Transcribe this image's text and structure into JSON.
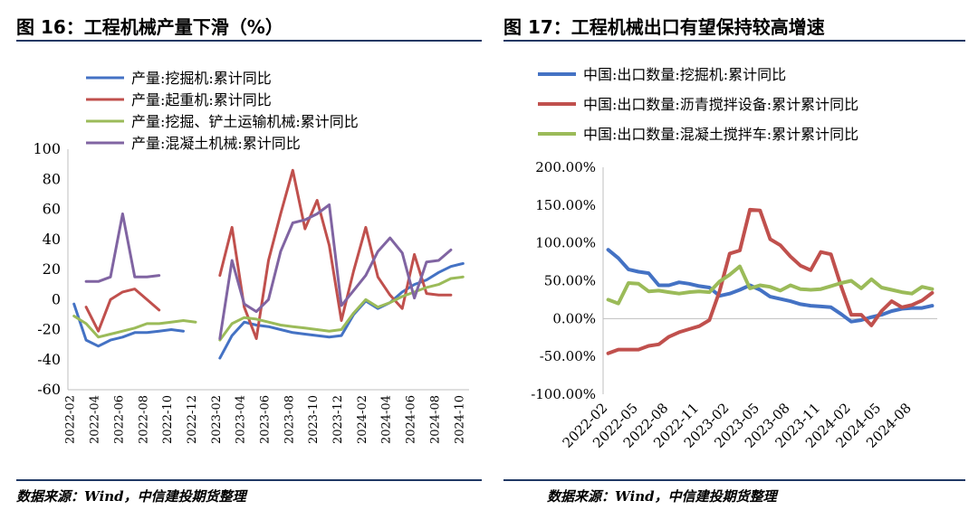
{
  "left_panel": {
    "title": "图 16：工程机械产量下滑（%）",
    "source": "数据来源：Wind，中信建投期货整理"
  },
  "right_panel": {
    "title": "图 17：工程机械出口有望保持较高增速",
    "source": "数据来源：Wind，中信建投期货整理"
  },
  "colors": {
    "blue": "#4472c4",
    "red": "#c0504d",
    "green": "#9bbb59",
    "purple": "#8064a2",
    "rule": "#1f3864"
  },
  "chart_data": [
    {
      "type": "line",
      "title": "",
      "xlabel": "",
      "ylabel": "",
      "ylim": [
        -60,
        100
      ],
      "yticks": [
        "100",
        "80",
        "60",
        "40",
        "20",
        "0",
        "-20",
        "-40",
        "-60"
      ],
      "yticks_values": [
        100,
        80,
        60,
        40,
        20,
        0,
        -20,
        -40,
        -60
      ],
      "x": [
        "2022-02",
        "2022-03",
        "2022-04",
        "2022-05",
        "2022-06",
        "2022-07",
        "2022-08",
        "2022-09",
        "2022-10",
        "2022-11",
        "2022-12",
        "2023-01",
        "2023-02",
        "2023-03",
        "2023-04",
        "2023-05",
        "2023-06",
        "2023-07",
        "2023-08",
        "2023-09",
        "2023-10",
        "2023-11",
        "2023-12",
        "2024-01",
        "2024-02",
        "2024-03",
        "2024-04",
        "2024-05",
        "2024-06",
        "2024-07",
        "2024-08",
        "2024-09",
        "2024-10"
      ],
      "xtick_labels": [
        "2022-02",
        "2022-04",
        "2022-06",
        "2022-08",
        "2022-10",
        "2022-12",
        "2023-02",
        "2023-04",
        "2023-06",
        "2023-08",
        "2023-10",
        "2023-12",
        "2024-02",
        "2024-04",
        "2024-06",
        "2024-08",
        "2024-10"
      ],
      "grid": false,
      "legend_position": "top-left",
      "series": [
        {
          "name": "产量:挖掘机:累计同比",
          "color": "#4472c4",
          "values": [
            -3,
            -27,
            -31,
            -27,
            -25,
            -22,
            -22,
            -21,
            -20,
            -21,
            null,
            null,
            -39,
            -24,
            -15,
            -17,
            -18,
            -20,
            -22,
            -23,
            -24,
            -25,
            -24,
            -10,
            -1,
            -6,
            -2,
            5,
            10,
            13,
            18,
            22,
            24
          ]
        },
        {
          "name": "产量:起重机:累计同比",
          "color": "#c0504d",
          "values": [
            null,
            -5,
            -21,
            0,
            5,
            7,
            0,
            -7,
            null,
            null,
            null,
            null,
            16,
            48,
            -5,
            -26,
            26,
            57,
            86,
            47,
            66,
            36,
            -14,
            19,
            48,
            15,
            3,
            -6,
            30,
            4,
            3,
            3,
            null
          ]
        },
        {
          "name": "产量:挖掘、铲土运输机械:累计同比",
          "color": "#9bbb59",
          "values": [
            -11,
            -16,
            -25,
            -23,
            -21,
            -19,
            -16,
            -16,
            -15,
            -14,
            -15,
            null,
            -27,
            -16,
            -12,
            -13,
            -15,
            -17,
            -18,
            -19,
            -20,
            -21,
            -20,
            -9,
            0,
            -5,
            -2,
            2,
            5,
            8,
            10,
            14,
            15
          ]
        },
        {
          "name": "产量:混凝土机械:累计同比",
          "color": "#8064a2",
          "values": [
            null,
            12,
            12,
            15,
            57,
            15,
            15,
            16,
            null,
            null,
            null,
            null,
            -26,
            26,
            -3,
            -8,
            0,
            32,
            51,
            53,
            57,
            63,
            -4,
            6,
            16,
            32,
            41,
            31,
            1,
            25,
            26,
            33,
            null
          ]
        }
      ]
    },
    {
      "type": "line",
      "title": "",
      "xlabel": "",
      "ylabel": "",
      "ylim": [
        -100,
        200
      ],
      "yticks": [
        "200.00%",
        "150.00%",
        "100.00%",
        "50.00%",
        "0.00%",
        "-50.00%",
        "-100.00%"
      ],
      "yticks_values": [
        200,
        150,
        100,
        50,
        0,
        -50,
        -100
      ],
      "x": [
        "2022-02",
        "2022-03",
        "2022-04",
        "2022-05",
        "2022-06",
        "2022-07",
        "2022-08",
        "2022-09",
        "2022-10",
        "2022-11",
        "2022-12",
        "2023-01",
        "2023-02",
        "2023-03",
        "2023-04",
        "2023-05",
        "2023-06",
        "2023-07",
        "2023-08",
        "2023-09",
        "2023-10",
        "2023-11",
        "2023-12",
        "2024-01",
        "2024-02",
        "2024-03",
        "2024-04",
        "2024-05",
        "2024-06",
        "2024-07",
        "2024-08",
        "2024-09",
        "2024-10"
      ],
      "xtick_labels": [
        "2022-02",
        "2022-05",
        "2022-08",
        "2022-11",
        "2023-02",
        "2023-05",
        "2023-08",
        "2023-11",
        "2024-02",
        "2024-05",
        "2024-08"
      ],
      "grid": false,
      "legend_position": "top-left",
      "series": [
        {
          "name": "中国:出口数量:挖掘机:累计同比",
          "color": "#4472c4",
          "values": [
            91,
            80,
            65,
            62,
            60,
            44,
            44,
            48,
            46,
            43,
            41,
            30,
            33,
            38,
            44,
            38,
            29,
            26,
            23,
            19,
            17,
            16,
            15,
            6,
            -4,
            -2,
            2,
            5,
            10,
            13,
            14,
            14,
            17
          ]
        },
        {
          "name": "中国:出口数量:沥青搅拌设备:累计累计同比",
          "color": "#c0504d",
          "values": [
            -46,
            -41,
            -41,
            -41,
            -36,
            -34,
            -24,
            -18,
            -14,
            -10,
            -2,
            36,
            86,
            90,
            144,
            143,
            105,
            97,
            82,
            70,
            64,
            88,
            85,
            43,
            5,
            5,
            -9,
            10,
            23,
            15,
            18,
            24,
            34
          ]
        },
        {
          "name": "中国:出口数量:混凝土搅拌车:累计累计同比",
          "color": "#9bbb59",
          "values": [
            25,
            20,
            47,
            46,
            36,
            37,
            35,
            33,
            35,
            36,
            35,
            49,
            58,
            69,
            40,
            44,
            42,
            37,
            44,
            39,
            38,
            39,
            43,
            47,
            50,
            40,
            52,
            41,
            38,
            35,
            33,
            42,
            39
          ]
        }
      ]
    }
  ]
}
